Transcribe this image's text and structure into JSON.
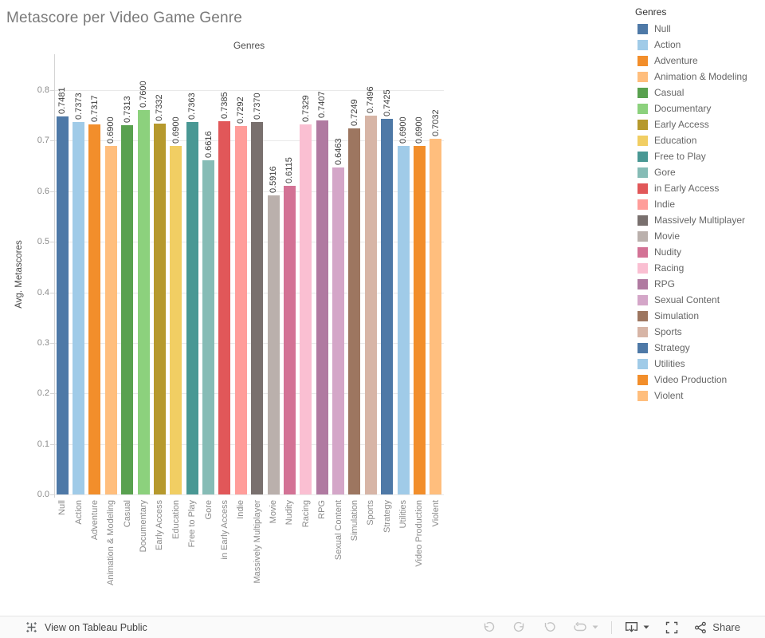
{
  "page": {
    "title": "Metascore per Video Game Genre"
  },
  "chart_data": {
    "type": "bar",
    "title": "Genres",
    "xlabel": "",
    "ylabel": "Avg. Metascores",
    "ylim": [
      0,
      0.85
    ],
    "yticks": [
      0.0,
      0.1,
      0.2,
      0.3,
      0.4,
      0.5,
      0.6,
      0.7,
      0.8
    ],
    "grid": true,
    "value_label_decimals": 4,
    "legend_position": "right",
    "legend_title": "Genres",
    "categories": [
      "Null",
      "Action",
      "Adventure",
      "Animation & Modeling",
      "Casual",
      "Documentary",
      "Early Access",
      "Education",
      "Free to Play",
      "Gore",
      "in Early Access",
      "Indie",
      "Massively Multiplayer",
      "Movie",
      "Nudity",
      "Racing",
      "RPG",
      "Sexual Content",
      "Simulation",
      "Sports",
      "Strategy",
      "Utilities",
      "Video Production",
      "Violent"
    ],
    "values": [
      0.7481,
      0.7373,
      0.7317,
      0.69,
      0.7313,
      0.76,
      0.7332,
      0.69,
      0.7363,
      0.6616,
      0.7385,
      0.7292,
      0.737,
      0.5916,
      0.6115,
      0.7329,
      0.7407,
      0.6463,
      0.7249,
      0.7496,
      0.7425,
      0.69,
      0.69,
      0.7032
    ],
    "colors": [
      "#4e79a7",
      "#a0cbe8",
      "#f28e2b",
      "#ffbe7d",
      "#59a14f",
      "#8cd17d",
      "#b6992d",
      "#f1ce63",
      "#499894",
      "#86bcb6",
      "#e15759",
      "#ff9d9a",
      "#79706e",
      "#bab0ac",
      "#d37295",
      "#fabfd2",
      "#b07aa1",
      "#d4a6c8",
      "#9d7660",
      "#d7b5a6",
      "#4e79a7",
      "#a0cbe8",
      "#f28e2b",
      "#ffbe7d"
    ]
  },
  "toolbar": {
    "view_label": "View on Tableau Public",
    "share_label": "Share",
    "icon_disabled_color": "#c3c3c3",
    "icon_color": "#4f4f4f"
  }
}
